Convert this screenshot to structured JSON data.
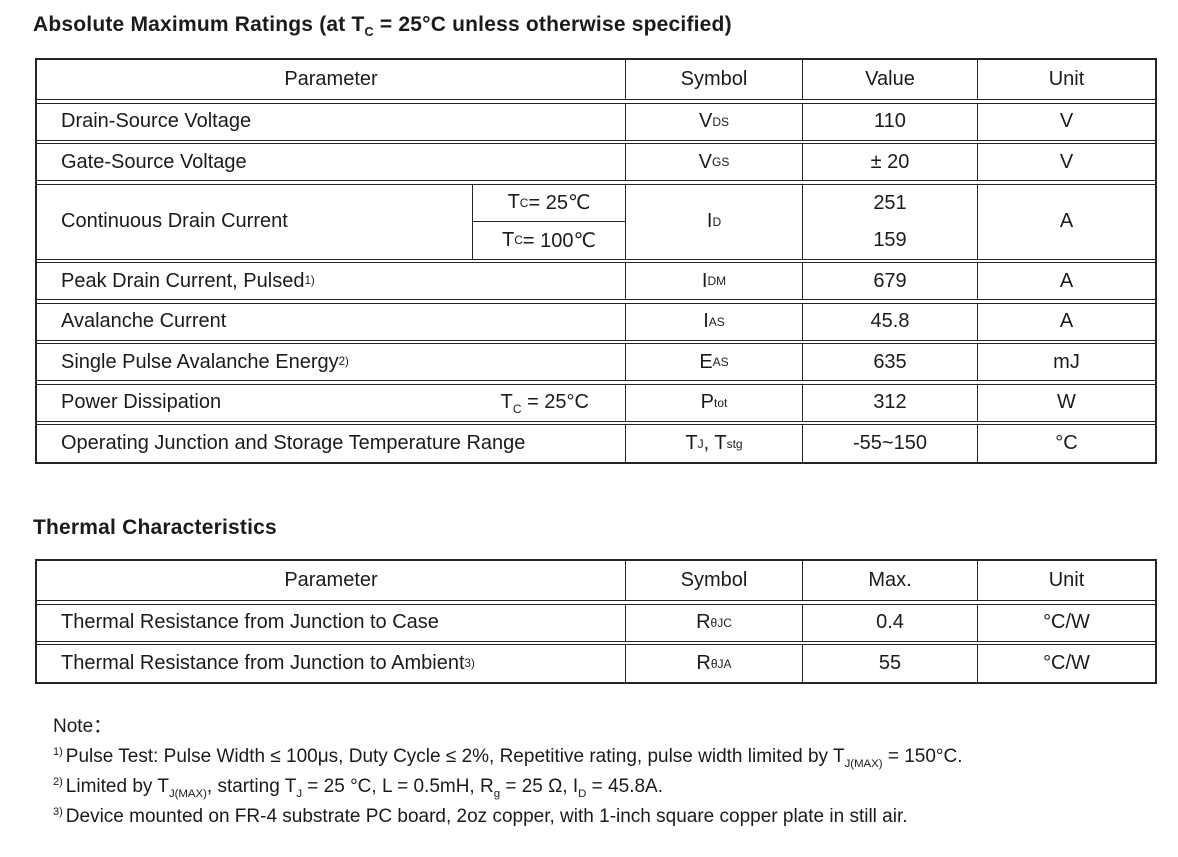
{
  "colors": {
    "background": "#ffffff",
    "text": "#1b1b1b",
    "table_border": "#242424"
  },
  "abs_max": {
    "title": [
      {
        "t": "Absolute Maximum Ratings (at T"
      },
      {
        "t": "C",
        "s": "sub"
      },
      {
        "t": " = 25°C unless otherwise specified)"
      }
    ],
    "headers": {
      "parameter": "Parameter",
      "symbol": "Symbol",
      "value": "Value",
      "unit": "Unit"
    },
    "rows": [
      {
        "param": [
          {
            "t": "Drain-Source Voltage"
          }
        ],
        "symbol": [
          {
            "t": "V"
          },
          {
            "t": "DS",
            "s": "sub"
          }
        ],
        "value": [
          {
            "t": "110"
          }
        ],
        "unit": [
          {
            "t": "V"
          }
        ]
      },
      {
        "param": [
          {
            "t": "Gate-Source Voltage"
          }
        ],
        "symbol": [
          {
            "t": "V"
          },
          {
            "t": "GS",
            "s": "sub"
          }
        ],
        "value": [
          {
            "t": "± 20"
          }
        ],
        "unit": [
          {
            "t": "V"
          }
        ]
      },
      {
        "param": [
          {
            "t": "Continuous Drain Current"
          }
        ],
        "cond1": [
          {
            "t": "T"
          },
          {
            "t": "C",
            "s": "sub"
          },
          {
            "t": " = 25℃"
          }
        ],
        "cond2": [
          {
            "t": "T"
          },
          {
            "t": "C",
            "s": "sub"
          },
          {
            "t": " = 100℃"
          }
        ],
        "symbol": [
          {
            "t": "I"
          },
          {
            "t": "D",
            "s": "sub"
          }
        ],
        "value1": [
          {
            "t": "251"
          }
        ],
        "value2": [
          {
            "t": "159"
          }
        ],
        "unit": [
          {
            "t": "A"
          }
        ]
      },
      {
        "param": [
          {
            "t": "Peak Drain Current, Pulsed "
          },
          {
            "t": "1)",
            "s": "sup"
          }
        ],
        "symbol": [
          {
            "t": "I"
          },
          {
            "t": "DM",
            "s": "sub"
          }
        ],
        "value": [
          {
            "t": "679"
          }
        ],
        "unit": [
          {
            "t": "A"
          }
        ]
      },
      {
        "param": [
          {
            "t": "Avalanche Current"
          }
        ],
        "symbol": [
          {
            "t": "I"
          },
          {
            "t": "AS",
            "s": "sub"
          }
        ],
        "value": [
          {
            "t": "45.8"
          }
        ],
        "unit": [
          {
            "t": "A"
          }
        ]
      },
      {
        "param": [
          {
            "t": "Single Pulse Avalanche Energy "
          },
          {
            "t": "2)",
            "s": "sup"
          }
        ],
        "symbol": [
          {
            "t": "E"
          },
          {
            "t": "AS",
            "s": "sub"
          }
        ],
        "value": [
          {
            "t": "635"
          }
        ],
        "unit": [
          {
            "t": "mJ"
          }
        ]
      },
      {
        "param": [
          {
            "t": "Power Dissipation"
          }
        ],
        "cond": [
          {
            "t": "T"
          },
          {
            "t": "C",
            "s": "sub"
          },
          {
            "t": " = 25°C"
          }
        ],
        "symbol": [
          {
            "t": "P"
          },
          {
            "t": "tot",
            "s": "sub"
          }
        ],
        "value": [
          {
            "t": "312"
          }
        ],
        "unit": [
          {
            "t": "W"
          }
        ]
      },
      {
        "param": [
          {
            "t": "Operating Junction and Storage Temperature Range"
          }
        ],
        "symbol": [
          {
            "t": "T"
          },
          {
            "t": "J",
            "s": "sub"
          },
          {
            "t": ", T"
          },
          {
            "t": "stg",
            "s": "sub"
          }
        ],
        "value": [
          {
            "t": "-55~150"
          }
        ],
        "unit": [
          {
            "t": "°C"
          }
        ]
      }
    ]
  },
  "thermal": {
    "title": "Thermal Characteristics",
    "headers": {
      "parameter": "Parameter",
      "symbol": "Symbol",
      "max": "Max.",
      "unit": "Unit"
    },
    "rows": [
      {
        "param": [
          {
            "t": "Thermal Resistance from Junction to Case"
          }
        ],
        "symbol": [
          {
            "t": "R"
          },
          {
            "t": "θJC",
            "s": "sub"
          }
        ],
        "value": [
          {
            "t": "0.4"
          }
        ],
        "unit": [
          {
            "t": "°C/W"
          }
        ]
      },
      {
        "param": [
          {
            "t": "Thermal Resistance from Junction to Ambient "
          },
          {
            "t": "3)",
            "s": "sup"
          }
        ],
        "symbol": [
          {
            "t": "R"
          },
          {
            "t": "θJA",
            "s": "sub"
          }
        ],
        "value": [
          {
            "t": "55"
          }
        ],
        "unit": [
          {
            "t": "°C/W"
          }
        ]
      }
    ]
  },
  "notes": {
    "label": "Note：",
    "items": [
      [
        {
          "t": "1)",
          "s": "sup"
        },
        {
          "t": "Pulse Test: Pulse Width ≤ 100μs, Duty Cycle ≤ 2%, Repetitive rating, pulse width limited by T"
        },
        {
          "t": "J(MAX)",
          "s": "sub"
        },
        {
          "t": " = 150°C."
        }
      ],
      [
        {
          "t": "2)",
          "s": "sup"
        },
        {
          "t": "Limited by T"
        },
        {
          "t": "J(MAX)",
          "s": "sub"
        },
        {
          "t": ", starting T"
        },
        {
          "t": "J",
          "s": "sub"
        },
        {
          "t": " = 25 °C, L = 0.5mH, R"
        },
        {
          "t": "g",
          "s": "sub"
        },
        {
          "t": " = 25 Ω, I"
        },
        {
          "t": "D",
          "s": "sub"
        },
        {
          "t": " = 45.8A."
        }
      ],
      [
        {
          "t": "3)",
          "s": "sup"
        },
        {
          "t": "Device mounted on FR-4 substrate PC board, 2oz copper, with 1-inch square copper plate in still air."
        }
      ]
    ]
  }
}
